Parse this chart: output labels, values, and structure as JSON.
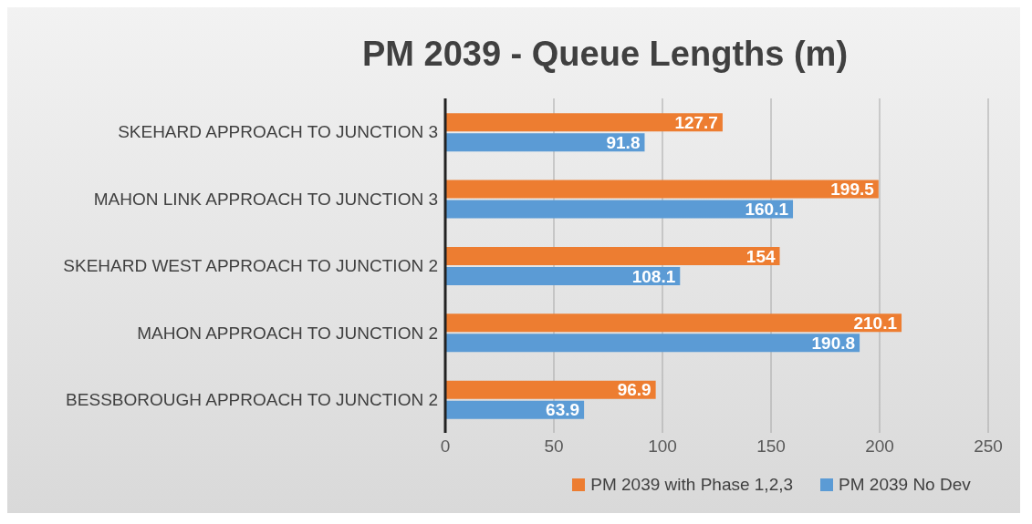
{
  "chart_data": {
    "type": "bar",
    "orientation": "horizontal",
    "title": "PM 2039 - Queue Lengths (m)",
    "categories": [
      "SKEHARD APPROACH TO JUNCTION 3",
      "MAHON LINK APPROACH TO JUNCTION 3",
      "SKEHARD WEST APPROACH TO JUNCTION 2",
      "MAHON APPROACH TO JUNCTION 2",
      "BESSBOROUGH APPROACH TO JUNCTION 2"
    ],
    "series": [
      {
        "name": "PM 2039 with Phase 1,2,3",
        "color": "#ed7d31",
        "values": [
          127.7,
          199.5,
          154,
          210.1,
          96.9
        ]
      },
      {
        "name": "PM 2039 No Dev",
        "color": "#5b9bd5",
        "values": [
          91.8,
          160.1,
          108.1,
          190.8,
          63.9
        ]
      }
    ],
    "xlim": [
      0,
      250
    ],
    "xticks": [
      0,
      50,
      100,
      150,
      200,
      250
    ],
    "grid": "x",
    "legend": "bottom",
    "data_labels": true
  }
}
